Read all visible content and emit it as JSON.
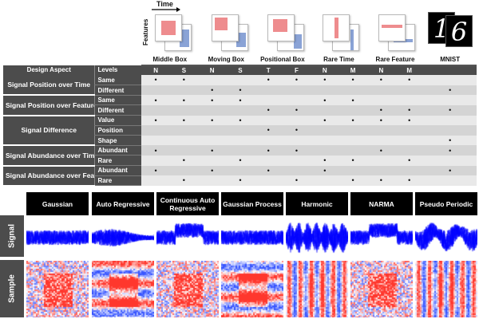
{
  "legend": {
    "time_label": "Time",
    "features_label": "Features"
  },
  "icons": [
    {
      "name": "middle-box",
      "type": "box"
    },
    {
      "name": "moving-box",
      "type": "moving"
    },
    {
      "name": "positional-box",
      "type": "positional"
    },
    {
      "name": "rare-time",
      "type": "rare-time"
    },
    {
      "name": "rare-feature",
      "type": "rare-feature"
    }
  ],
  "mnist_digits": [
    "1",
    "6"
  ],
  "table": {
    "groups": [
      "Middle Box",
      "Moving Box",
      "Positional Box",
      "Rare Time",
      "Rare Feature",
      "MNIST"
    ],
    "header": {
      "aspect": "Design Aspect",
      "levels": "Levels"
    },
    "level_codes": [
      "N",
      "S",
      "N",
      "S",
      "T",
      "F",
      "N",
      "M",
      "N",
      "M",
      ""
    ],
    "aspects": [
      {
        "name": "Signal Position over Time",
        "levels": [
          {
            "label": "Same",
            "marks": [
              1,
              1,
              0,
              0,
              1,
              1,
              1,
              1,
              1,
              1,
              0
            ]
          },
          {
            "label": "Different",
            "marks": [
              0,
              0,
              1,
              1,
              0,
              0,
              0,
              0,
              0,
              0,
              1
            ]
          }
        ]
      },
      {
        "name": "Signal Position over Features",
        "levels": [
          {
            "label": "Same",
            "marks": [
              1,
              1,
              1,
              1,
              0,
              0,
              1,
              1,
              0,
              0,
              0
            ]
          },
          {
            "label": "Different",
            "marks": [
              0,
              0,
              0,
              0,
              1,
              1,
              0,
              0,
              1,
              1,
              1
            ]
          }
        ]
      },
      {
        "name": "Signal Difference",
        "levels": [
          {
            "label": "Value",
            "marks": [
              1,
              1,
              1,
              1,
              0,
              0,
              1,
              1,
              1,
              1,
              0
            ]
          },
          {
            "label": "Position",
            "marks": [
              0,
              0,
              0,
              0,
              1,
              1,
              0,
              0,
              0,
              0,
              0
            ]
          },
          {
            "label": "Shape",
            "marks": [
              0,
              0,
              0,
              0,
              0,
              0,
              0,
              0,
              0,
              0,
              1
            ]
          }
        ]
      },
      {
        "name": "Signal Abundance over Time",
        "levels": [
          {
            "label": "Abundant",
            "marks": [
              1,
              0,
              1,
              0,
              1,
              1,
              0,
              0,
              1,
              0,
              1
            ]
          },
          {
            "label": "Rare",
            "marks": [
              0,
              1,
              0,
              1,
              0,
              0,
              1,
              1,
              0,
              1,
              0
            ]
          }
        ]
      },
      {
        "name": "Signal Abundance over Features",
        "levels": [
          {
            "label": "Abundant",
            "marks": [
              1,
              0,
              1,
              0,
              1,
              0,
              1,
              0,
              0,
              0,
              1
            ]
          },
          {
            "label": "Rare",
            "marks": [
              0,
              1,
              0,
              1,
              0,
              1,
              0,
              1,
              1,
              1,
              0
            ]
          }
        ]
      }
    ]
  },
  "datasets": [
    "Gaussian",
    "Auto Regressive",
    "Continuous Auto Regressive",
    "Gaussian Process",
    "Harmonic",
    "NARMA",
    "Pseudo Periodic"
  ],
  "row_labels": {
    "signal": "Signal",
    "sample": "Sample"
  },
  "colors": {
    "header_dark": "#4c4c4c",
    "signal_blue": "#0000ff",
    "heat_red": "#d7302a",
    "heat_blue": "#3b4cc0",
    "icon_red": "#ee8c8e",
    "icon_blue": "#8aa3d6"
  }
}
